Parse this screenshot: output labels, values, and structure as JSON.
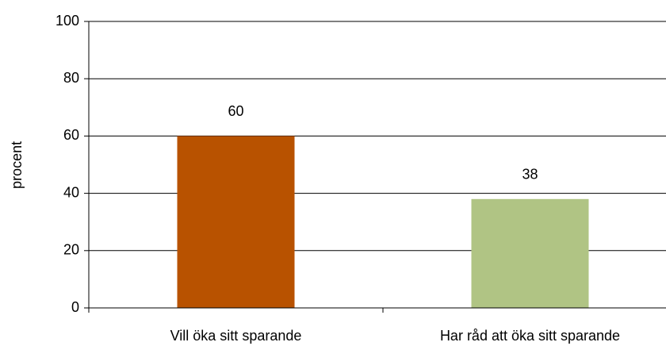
{
  "chart_data": {
    "type": "bar",
    "y_label": "procent",
    "categories": [
      "Vill öka sitt sparande",
      "Har råd att öka sitt sparande"
    ],
    "values": [
      60,
      38
    ],
    "colors": [
      "#b85200",
      "#b0c484"
    ],
    "ylim": [
      0,
      100
    ],
    "yticks": [
      0,
      20,
      40,
      60,
      80,
      100
    ],
    "grid": true,
    "data_labels": true
  }
}
